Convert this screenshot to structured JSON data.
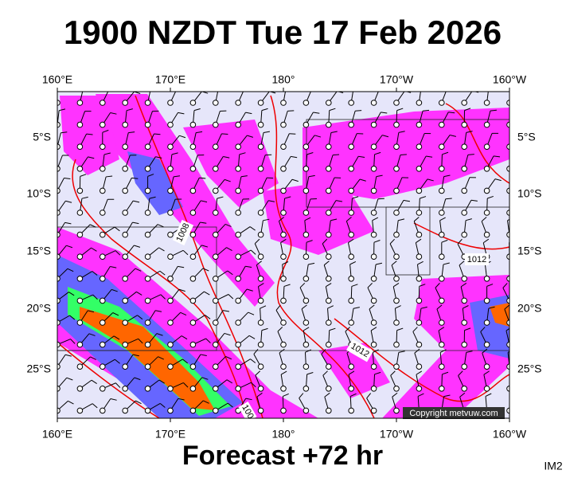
{
  "header": {
    "title": "1900 NZDT Tue 17 Feb 2026"
  },
  "map": {
    "lon_labels": [
      "160°E",
      "170°E",
      "180°",
      "170°W",
      "160°W"
    ],
    "lat_labels": [
      "5°S",
      "10°S",
      "15°S",
      "20°S",
      "25°S"
    ],
    "isobar_labels": [
      "1008",
      "1012",
      "1012",
      "100"
    ],
    "copyright": "Copyright metvuw.com"
  },
  "footer": {
    "caption": "Forecast +72 hr",
    "code": "IM2"
  }
}
